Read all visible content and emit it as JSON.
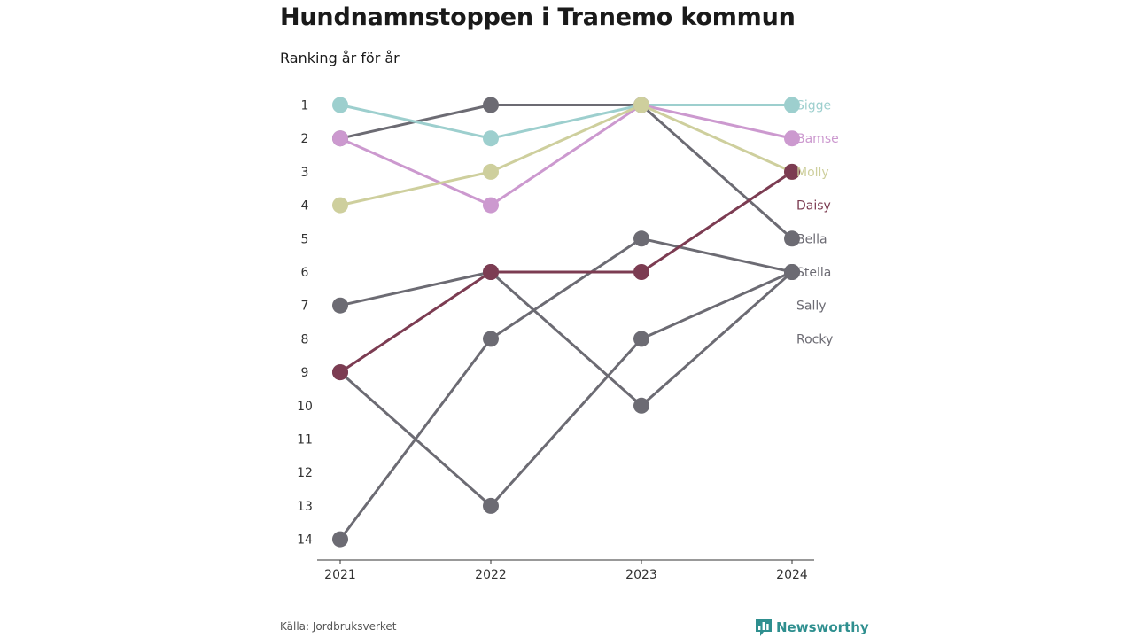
{
  "title": "Hundnamnstoppen i Tranemo kommun",
  "subtitle": "Ranking år för år",
  "source": "Källa: Jordbruksverket",
  "brand": {
    "name": "Newsworthy",
    "icon": "newsworthy-logo-icon",
    "color": "#2f8f8f"
  },
  "chart_data": {
    "type": "line",
    "subtype": "bump",
    "x": [
      "2021",
      "2022",
      "2023",
      "2024"
    ],
    "y_ticks": [
      "1",
      "2",
      "3",
      "4",
      "5",
      "6",
      "7",
      "8",
      "9",
      "10",
      "11",
      "12",
      "13",
      "14"
    ],
    "ylim": [
      1,
      14
    ],
    "y_reversed": true,
    "grid": false,
    "series": [
      {
        "name": "Sigge",
        "color": "#9dcfce",
        "values": [
          1,
          2,
          1,
          1
        ]
      },
      {
        "name": "Bamse",
        "color": "#cc99cf",
        "values": [
          2,
          4,
          1,
          2
        ]
      },
      {
        "name": "Molly",
        "color": "#cecf9d",
        "values": [
          4,
          3,
          1,
          3
        ]
      },
      {
        "name": "Daisy",
        "color": "#7c3c52",
        "values": [
          9,
          6,
          6,
          3
        ]
      },
      {
        "name": "Bella",
        "color": "#6c6b73",
        "values": [
          2,
          1,
          1,
          5
        ]
      },
      {
        "name": "Stella",
        "color": "#6c6b73",
        "values": [
          7,
          6,
          10,
          6
        ]
      },
      {
        "name": "Sally",
        "color": "#6c6b73",
        "values": [
          14,
          8,
          5,
          6
        ]
      },
      {
        "name": "Rocky",
        "color": "#6c6b73",
        "values": [
          9,
          13,
          8,
          6
        ]
      }
    ]
  }
}
